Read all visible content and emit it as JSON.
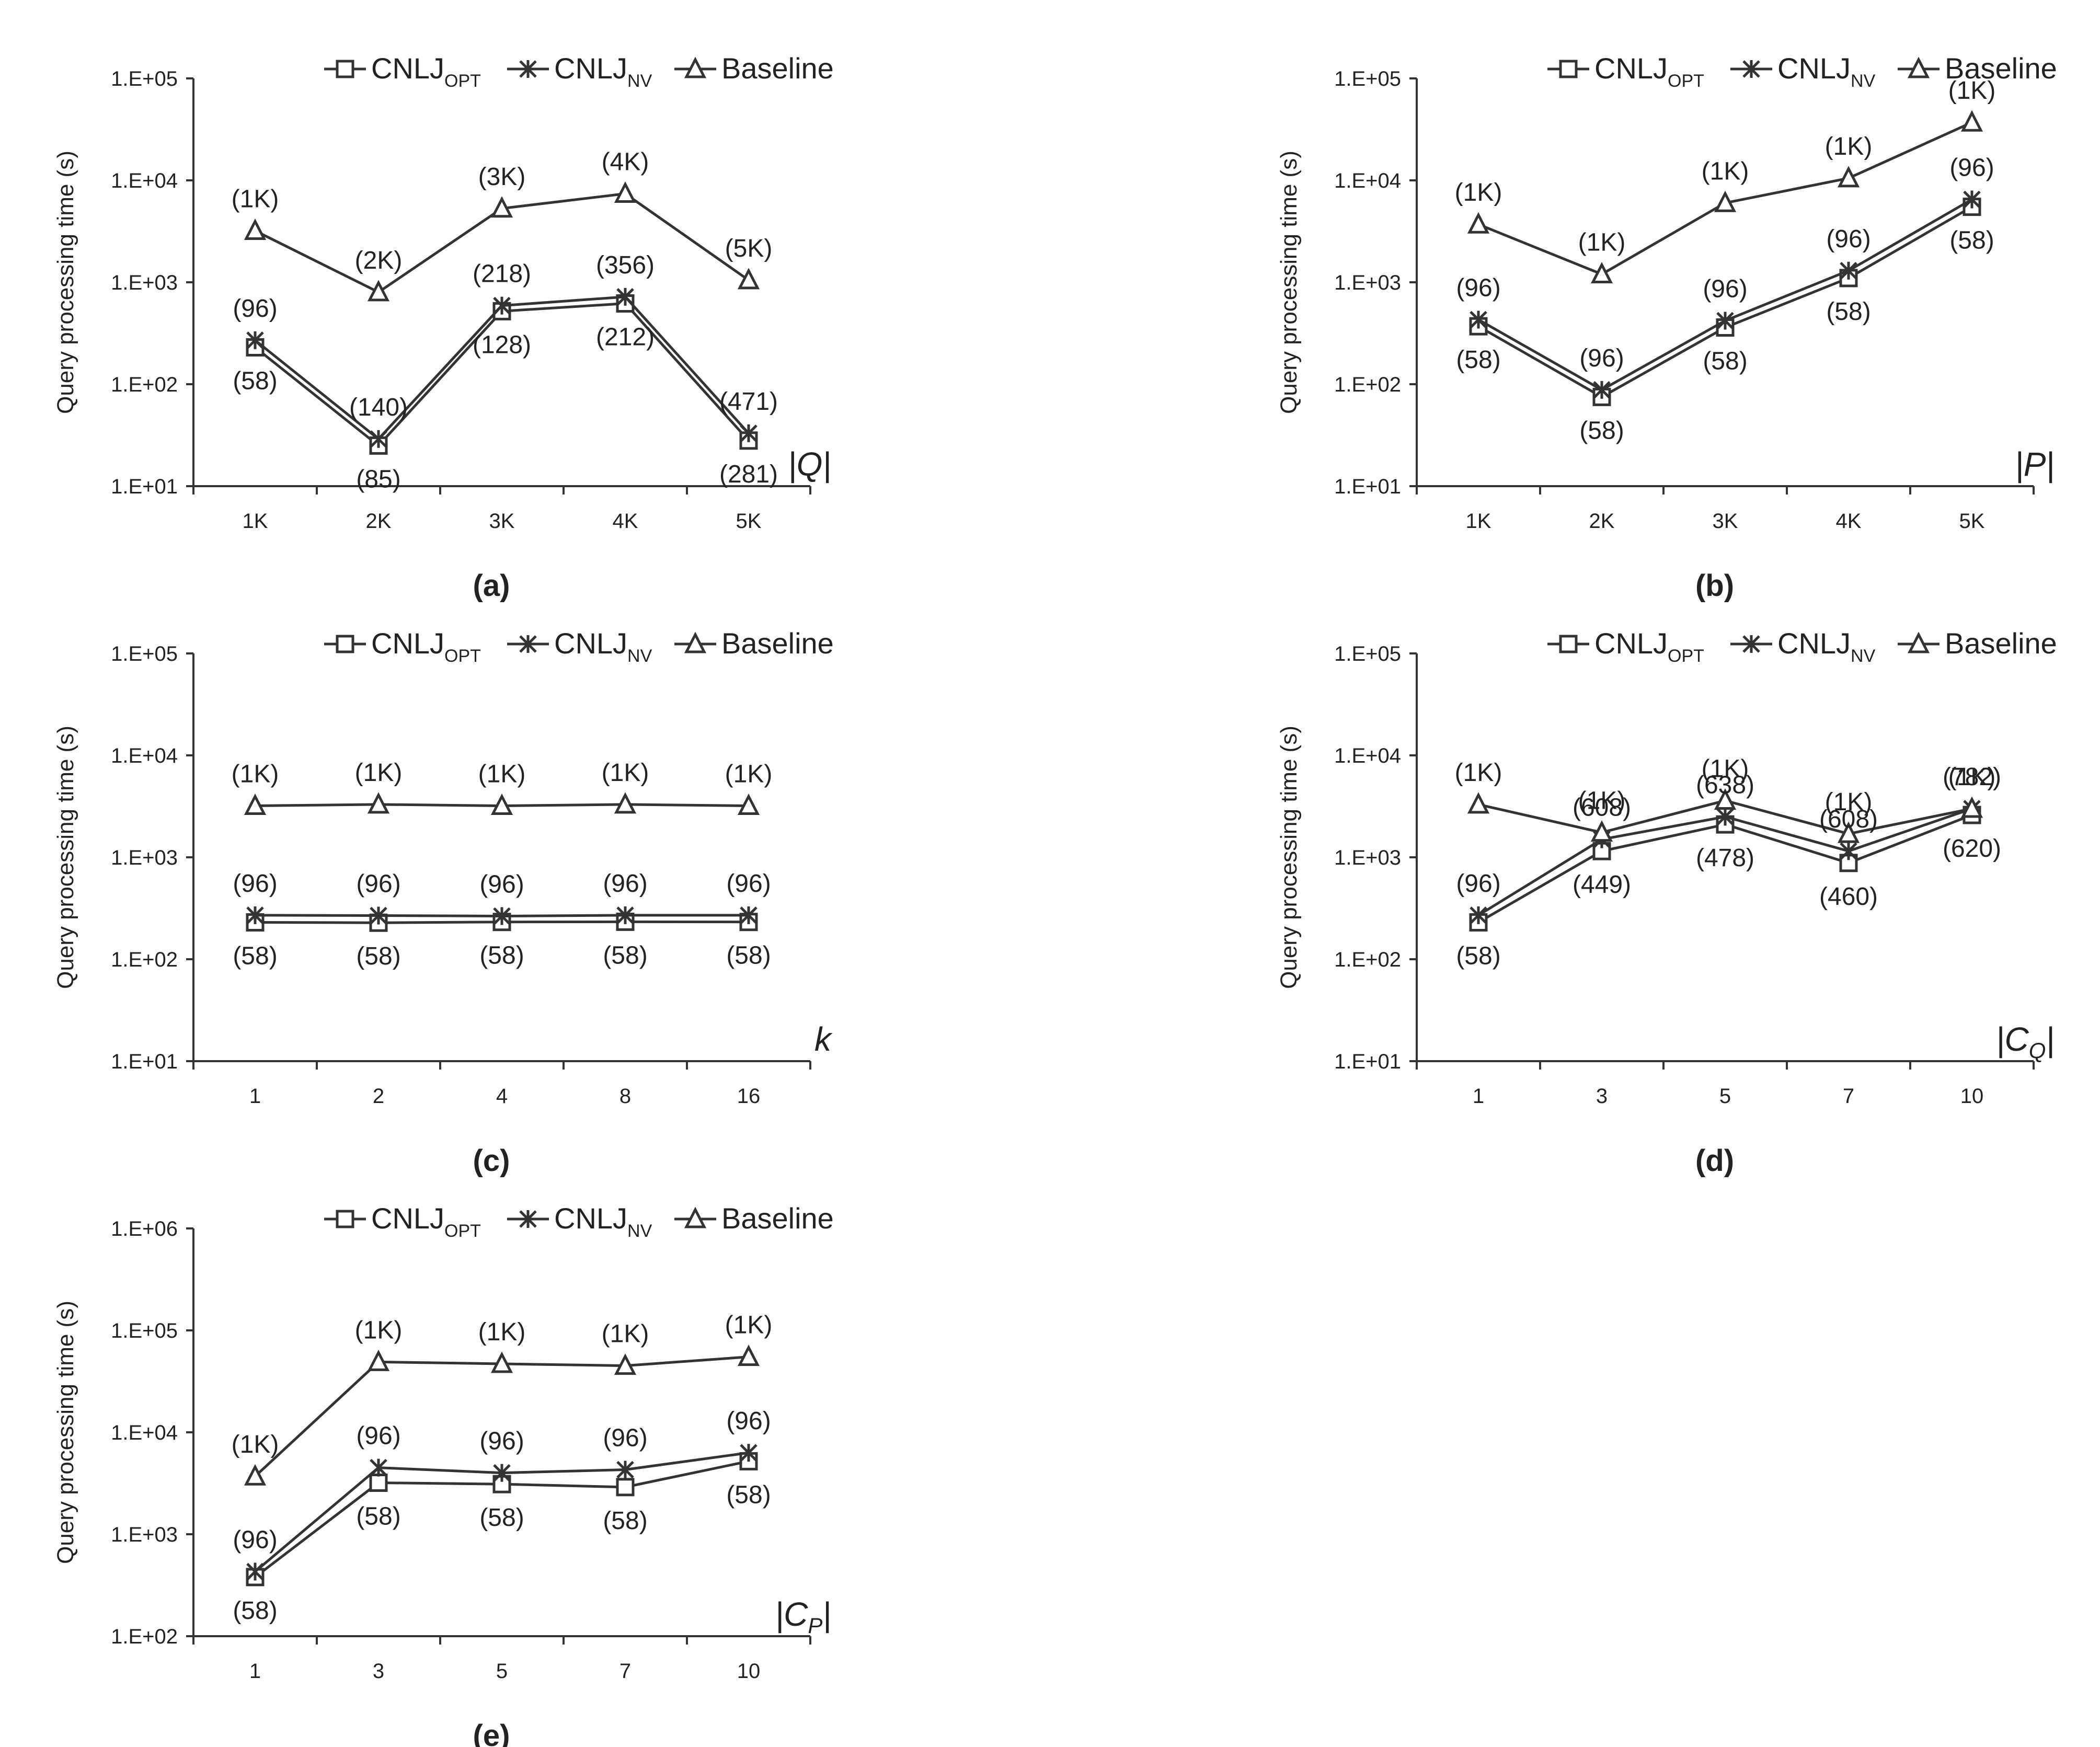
{
  "figure": {
    "legend": {
      "opt": {
        "main": "CNLJ",
        "sub": "OPT"
      },
      "nv": {
        "main": "CNLJ",
        "sub": "NV"
      },
      "base": {
        "main": "Baseline"
      }
    },
    "ylabel": "Query processing time (s)",
    "line_color": "#333333"
  },
  "chart_data": [
    {
      "id": "a",
      "type": "line",
      "caption": "(a)",
      "xvar": "|Q|",
      "categories": [
        "1K",
        "2K",
        "3K",
        "4K",
        "5K"
      ],
      "ylim_exp": [
        1,
        5
      ],
      "ytick_labels": [
        "1.E+01",
        "1.E+02",
        "1.E+03",
        "1.E+04",
        "1.E+05"
      ],
      "scale": "log",
      "series": [
        {
          "name": "CNLJ_OPT",
          "values": [
            230,
            25,
            520,
            620,
            28
          ],
          "labels": [
            "(58)",
            "(85)",
            "(128)",
            "(212)",
            "(281)"
          ]
        },
        {
          "name": "CNLJ_NV",
          "values": [
            270,
            29,
            590,
            720,
            33
          ],
          "labels": [
            "(96)",
            "(140)",
            "(218)",
            "(356)",
            "(471)"
          ]
        },
        {
          "name": "Baseline",
          "values": [
            3200,
            800,
            5300,
            7400,
            1050
          ],
          "labels": [
            "(1K)",
            "(2K)",
            "(3K)",
            "(4K)",
            "(5K)"
          ]
        }
      ]
    },
    {
      "id": "b",
      "type": "line",
      "caption": "(b)",
      "xvar": "|P|",
      "categories": [
        "1K",
        "2K",
        "3K",
        "4K",
        "5K"
      ],
      "ylim_exp": [
        1,
        5
      ],
      "ytick_labels": [
        "1.E+01",
        "1.E+02",
        "1.E+03",
        "1.E+04",
        "1.E+05"
      ],
      "scale": "log",
      "series": [
        {
          "name": "CNLJ_OPT",
          "values": [
            370,
            75,
            360,
            1100,
            5500
          ],
          "labels": [
            "(58)",
            "(58)",
            "(58)",
            "(58)",
            "(58)"
          ]
        },
        {
          "name": "CNLJ_NV",
          "values": [
            430,
            88,
            420,
            1300,
            6500
          ],
          "labels": [
            "(96)",
            "(96)",
            "(96)",
            "(96)",
            "(96)"
          ]
        },
        {
          "name": "Baseline",
          "values": [
            3700,
            1200,
            6000,
            10500,
            37000
          ],
          "labels": [
            "(1K)",
            "(1K)",
            "(1K)",
            "(1K)",
            "(1K)"
          ]
        }
      ]
    },
    {
      "id": "c",
      "type": "line",
      "caption": "(c)",
      "xvar": "k",
      "categories": [
        "1",
        "2",
        "4",
        "8",
        "16"
      ],
      "ylim_exp": [
        1,
        5
      ],
      "ytick_labels": [
        "1.E+01",
        "1.E+02",
        "1.E+03",
        "1.E+04",
        "1.E+05"
      ],
      "scale": "log",
      "series": [
        {
          "name": "CNLJ_OPT",
          "values": [
            230,
            228,
            232,
            233,
            232
          ],
          "labels": [
            "(58)",
            "(58)",
            "(58)",
            "(58)",
            "(58)"
          ]
        },
        {
          "name": "CNLJ_NV",
          "values": [
            270,
            268,
            265,
            270,
            270
          ],
          "labels": [
            "(96)",
            "(96)",
            "(96)",
            "(96)",
            "(96)"
          ]
        },
        {
          "name": "Baseline",
          "values": [
            3200,
            3300,
            3200,
            3300,
            3200
          ],
          "labels": [
            "(1K)",
            "(1K)",
            "(1K)",
            "(1K)",
            "(1K)"
          ]
        }
      ]
    },
    {
      "id": "d",
      "type": "line",
      "caption": "(d)",
      "xvar": "|C_Q|",
      "categories": [
        "1",
        "3",
        "5",
        "7",
        "10"
      ],
      "ylim_exp": [
        1,
        5
      ],
      "ytick_labels": [
        "1.E+01",
        "1.E+02",
        "1.E+03",
        "1.E+04",
        "1.E+05"
      ],
      "scale": "log",
      "series": [
        {
          "name": "CNLJ_OPT",
          "values": [
            230,
            1150,
            2100,
            880,
            2600
          ],
          "labels": [
            "(58)",
            "(449)",
            "(478)",
            "(460)",
            "(620)"
          ]
        },
        {
          "name": "CNLJ_NV",
          "values": [
            270,
            1500,
            2500,
            1150,
            3000
          ],
          "labels": [
            "(96)",
            "(608)",
            "(638)",
            "(608)",
            "(782)"
          ]
        },
        {
          "name": "Baseline",
          "values": [
            3300,
            1750,
            3600,
            1700,
            3000
          ],
          "labels": [
            "(1K)",
            "(1K)",
            "(1K)",
            "(1K)",
            "(1K)"
          ]
        }
      ]
    },
    {
      "id": "e",
      "type": "line",
      "caption": "(e)",
      "xvar": "|C_P|",
      "categories": [
        "1",
        "3",
        "5",
        "7",
        "10"
      ],
      "ylim_exp": [
        2,
        6
      ],
      "ytick_labels": [
        "1.E+02",
        "1.E+03",
        "1.E+04",
        "1.E+05",
        "1.E+06"
      ],
      "scale": "log",
      "series": [
        {
          "name": "CNLJ_OPT",
          "values": [
            380,
            3200,
            3100,
            2900,
            5200
          ],
          "labels": [
            "(58)",
            "(58)",
            "(58)",
            "(58)",
            "(58)"
          ]
        },
        {
          "name": "CNLJ_NV",
          "values": [
            430,
            4500,
            4000,
            4300,
            6300
          ],
          "labels": [
            "(96)",
            "(96)",
            "(96)",
            "(96)",
            "(96)"
          ]
        },
        {
          "name": "Baseline",
          "values": [
            3700,
            49000,
            47000,
            45000,
            55000
          ],
          "labels": [
            "(1K)",
            "(1K)",
            "(1K)",
            "(1K)",
            "(1K)"
          ]
        }
      ]
    }
  ]
}
